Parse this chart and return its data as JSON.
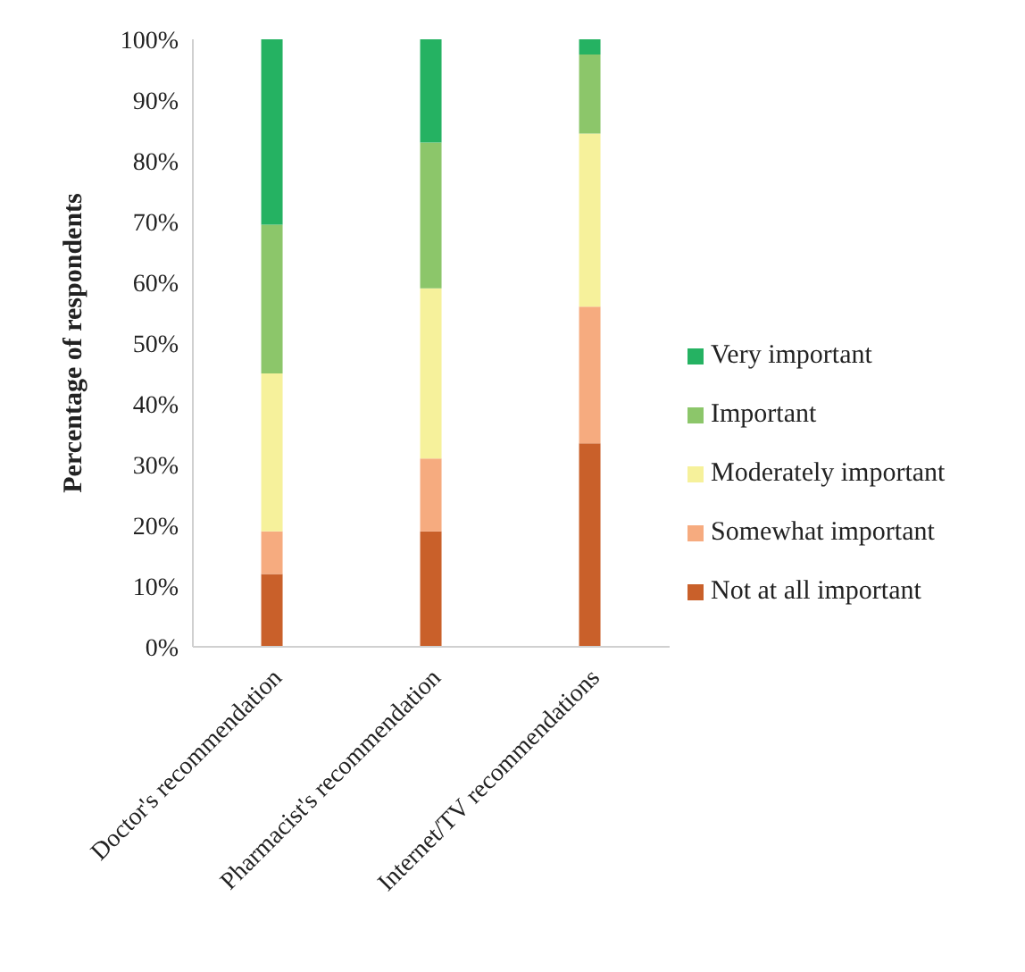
{
  "chart_data": {
    "type": "bar",
    "stacked": true,
    "ylabel": "Percentage of respondents",
    "categories": [
      "Doctor's recommendation",
      "Pharmacist's recommendation",
      "Internet/TV recommendations"
    ],
    "series": [
      {
        "name": "Not at all important",
        "color": "#c9602a",
        "values": [
          12,
          19,
          33.5
        ]
      },
      {
        "name": "Somewhat important",
        "color": "#f6ab7f",
        "values": [
          7,
          12,
          22.5
        ]
      },
      {
        "name": "Moderately important",
        "color": "#f6f19b",
        "values": [
          26,
          28,
          28.5
        ]
      },
      {
        "name": "Important",
        "color": "#8cc66a",
        "values": [
          24.5,
          24,
          13
        ]
      },
      {
        "name": "Very important",
        "color": "#25b262",
        "values": [
          30.5,
          17,
          2.5
        ]
      }
    ],
    "ylim": [
      0,
      100
    ],
    "yticks": [
      {
        "value": 0,
        "label": "0%"
      },
      {
        "value": 10,
        "label": "10%"
      },
      {
        "value": 20,
        "label": "20%"
      },
      {
        "value": 30,
        "label": "30%"
      },
      {
        "value": 40,
        "label": "40%"
      },
      {
        "value": 50,
        "label": "50%"
      },
      {
        "value": 60,
        "label": "60%"
      },
      {
        "value": 70,
        "label": "70%"
      },
      {
        "value": 80,
        "label": "80%"
      },
      {
        "value": 90,
        "label": "90%"
      },
      {
        "value": 100,
        "label": "100%"
      }
    ],
    "grid": false,
    "legend": "right"
  }
}
